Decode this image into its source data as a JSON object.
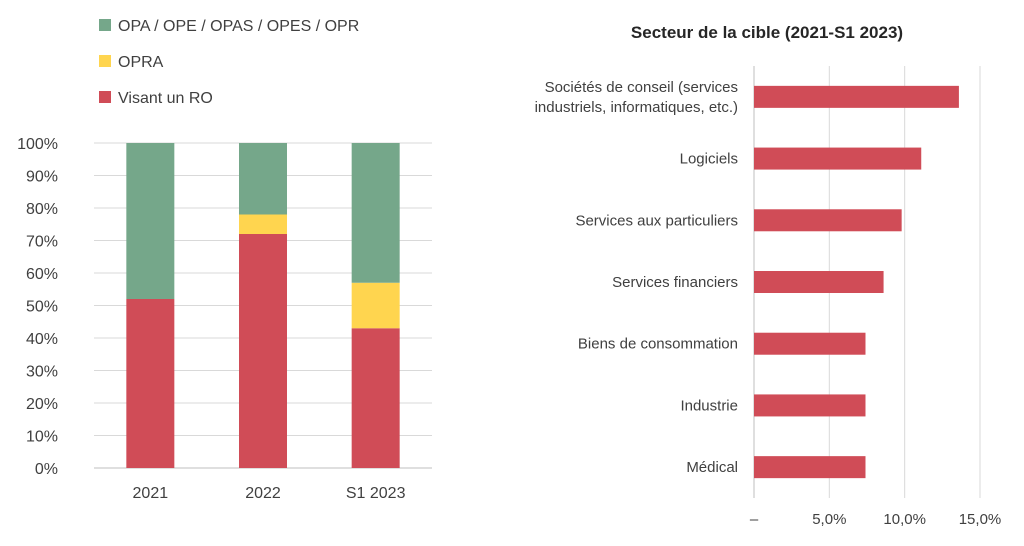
{
  "chart_data": [
    {
      "type": "bar",
      "stacked": true,
      "orientation": "vertical",
      "categories": [
        "2021",
        "2022",
        "S1 2023"
      ],
      "series": [
        {
          "name": "Visant un RO",
          "color": "#d04c57",
          "values": [
            52,
            72,
            43
          ]
        },
        {
          "name": "OPRA",
          "color": "#ffd54f",
          "values": [
            0,
            6,
            14
          ]
        },
        {
          "name": "OPA / OPE / OPAS / OPES / OPR",
          "color": "#75a78a",
          "values": [
            48,
            22,
            43
          ]
        }
      ],
      "legend_order": [
        "OPA / OPE / OPAS / OPES / OPR",
        "OPRA",
        "Visant un RO"
      ],
      "ylim": [
        0,
        100
      ],
      "yticks": [
        "0%",
        "10%",
        "20%",
        "30%",
        "40%",
        "50%",
        "60%",
        "70%",
        "80%",
        "90%",
        "100%"
      ],
      "legend_position": "top-left",
      "grid": true
    },
    {
      "type": "bar",
      "orientation": "horizontal",
      "title": "Secteur de la cible (2021-S1 2023)",
      "categories": [
        [
          "Sociétés de conseil (services",
          "industriels, informatiques, etc.)"
        ],
        [
          "Logiciels"
        ],
        [
          "Services aux particuliers"
        ],
        [
          "Services financiers"
        ],
        [
          "Biens de consommation"
        ],
        [
          "Industrie"
        ],
        [
          "Médical"
        ]
      ],
      "values": [
        13.6,
        11.1,
        9.8,
        8.6,
        7.4,
        7.4,
        7.4
      ],
      "color": "#d04c57",
      "xlim": [
        0,
        15
      ],
      "xticks": [
        "–",
        "5,0%",
        "10,0%",
        "15,0%"
      ],
      "grid": true
    }
  ]
}
